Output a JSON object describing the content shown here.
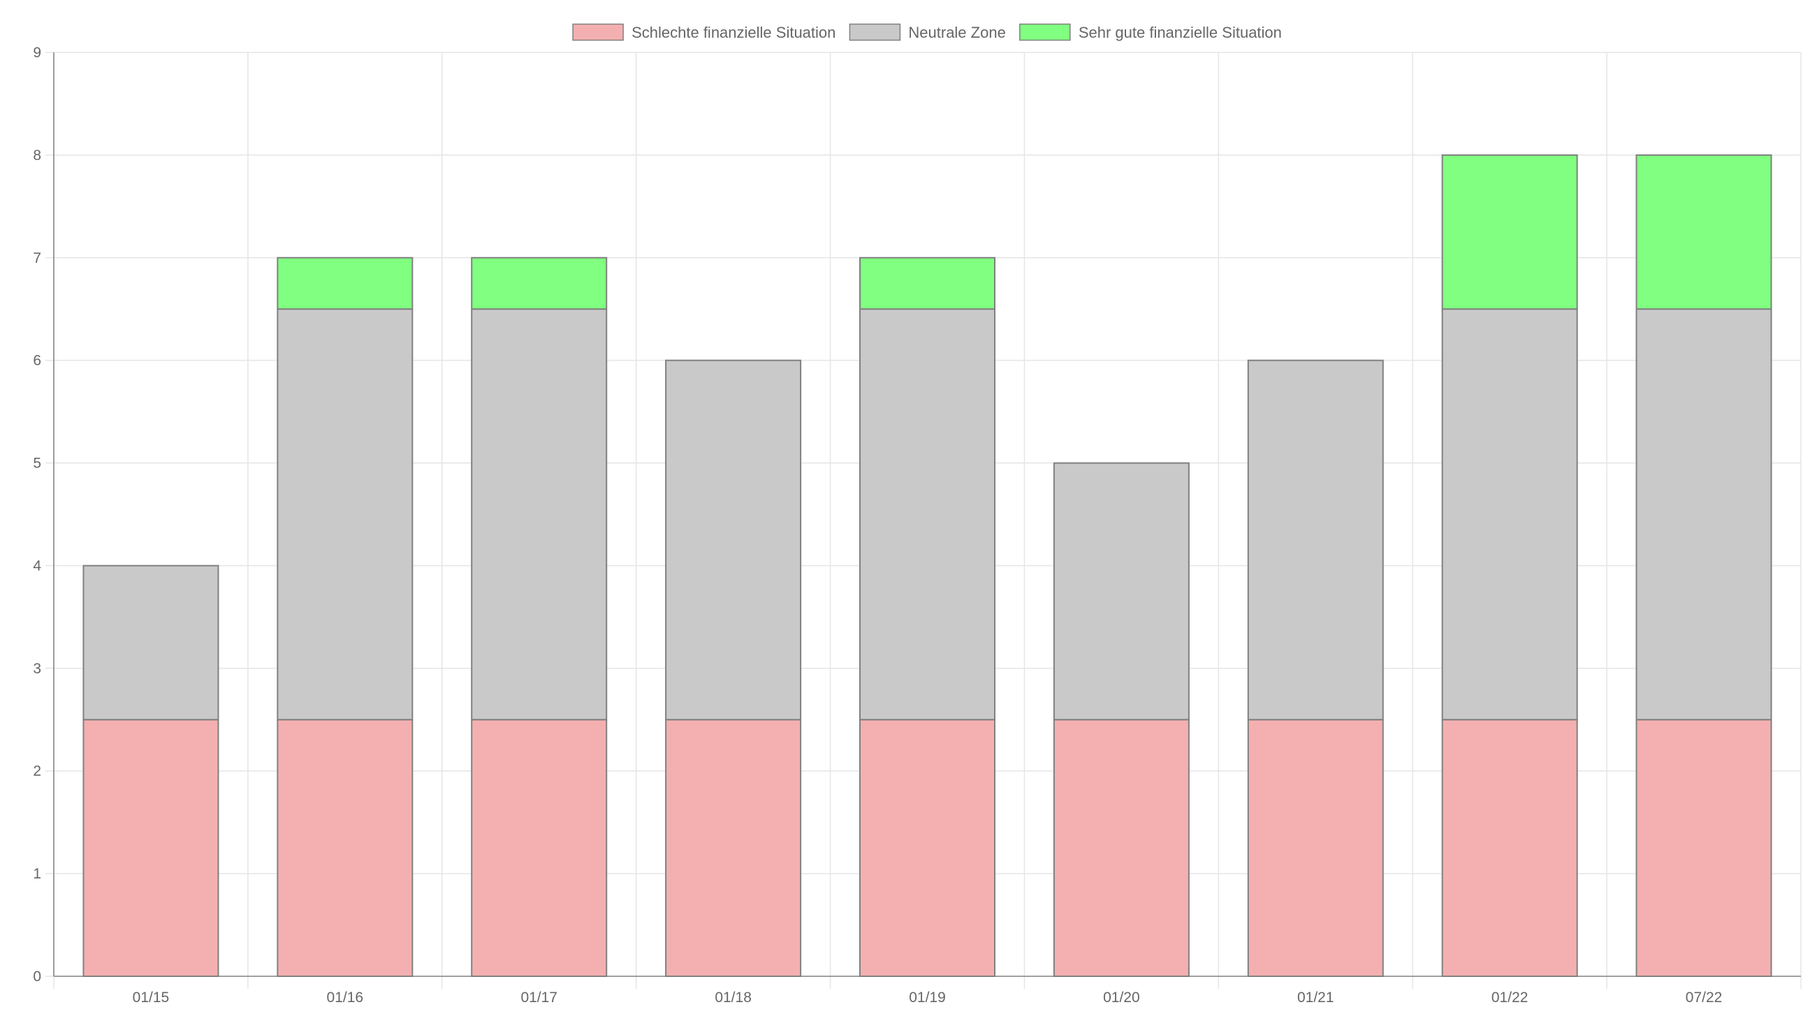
{
  "chart_data": {
    "type": "bar",
    "stacked": true,
    "categories": [
      "01/15",
      "01/16",
      "01/17",
      "01/18",
      "01/19",
      "01/20",
      "01/21",
      "01/22",
      "07/22"
    ],
    "series": [
      {
        "name": "Schlechte finanzielle Situation",
        "color": "#f4b0b0",
        "values": [
          2.5,
          2.5,
          2.5,
          2.5,
          2.5,
          2.5,
          2.5,
          2.5,
          2.5
        ]
      },
      {
        "name": "Neutrale Zone",
        "color": "#c9c9c9",
        "values": [
          1.5,
          4,
          4,
          3.5,
          4,
          2.5,
          3.5,
          4,
          4
        ]
      },
      {
        "name": "Sehr gute finanzielle Situation",
        "color": "#80ff80",
        "values": [
          0,
          0.5,
          0.5,
          0,
          0.5,
          0,
          0,
          1.5,
          1.5
        ]
      }
    ],
    "ylim": [
      0,
      9
    ],
    "yticks": [
      "0",
      "1",
      "2",
      "3",
      "4",
      "5",
      "6",
      "7",
      "8",
      "9"
    ],
    "grid": true,
    "legend_position": "top",
    "border_color": "#808080",
    "grid_color": "#e5e5e5"
  }
}
